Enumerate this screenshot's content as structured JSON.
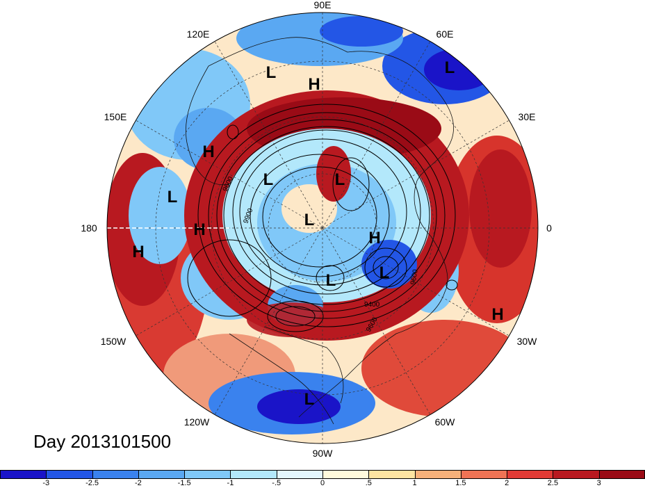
{
  "title": "Day 2013101500",
  "map": {
    "projection": "polar-stereographic north",
    "longitude_labels": [
      "90E",
      "60E",
      "30E",
      "0",
      "30W",
      "60W",
      "90W",
      "120W",
      "150W",
      "180",
      "150E",
      "120E"
    ],
    "pressure_centers": [
      {
        "label": "L"
      },
      {
        "label": "H"
      },
      {
        "label": "L"
      },
      {
        "label": "H"
      },
      {
        "label": "L"
      },
      {
        "label": "L"
      },
      {
        "label": "H"
      },
      {
        "label": "L"
      },
      {
        "label": "H"
      },
      {
        "label": "H"
      },
      {
        "label": "L"
      },
      {
        "label": "L"
      },
      {
        "label": "L"
      },
      {
        "label": "H"
      },
      {
        "label": "L"
      }
    ],
    "contour_labels": [
      "9600",
      "9900",
      "9400",
      "9600",
      "9600"
    ]
  },
  "colorbar": {
    "ticks": [
      "-3",
      "-2.5",
      "-2",
      "-1.5",
      "-1",
      "-.5",
      "0",
      ".5",
      "1",
      "1.5",
      "2",
      "2.5",
      "3"
    ],
    "colors": [
      "#1a14c8",
      "#2356e6",
      "#3a82ee",
      "#5aa8f2",
      "#80c8f8",
      "#b3e8fb",
      "#e3f6fd",
      "#fffadc",
      "#fde4a2",
      "#f6b07a",
      "#ef7355",
      "#e13a35",
      "#b81920",
      "#9a0b16"
    ]
  }
}
